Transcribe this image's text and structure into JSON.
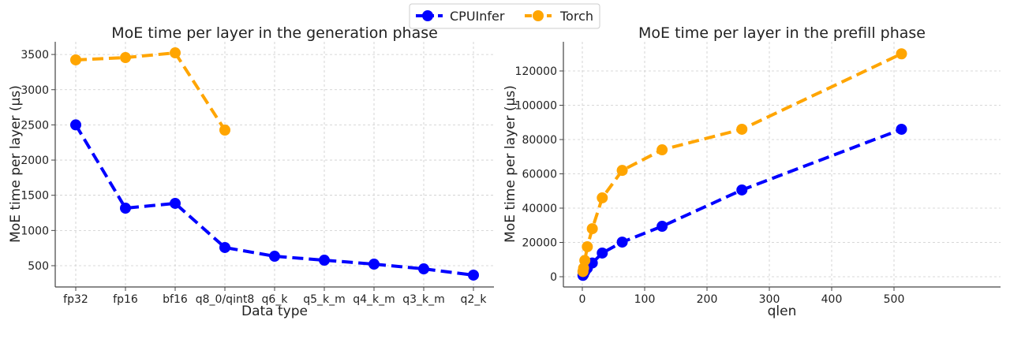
{
  "legend": {
    "placement": "top-center",
    "entries": [
      {
        "name": "CPUInfer",
        "color": "#0000ff"
      },
      {
        "name": "Torch",
        "color": "#ffa500"
      }
    ]
  },
  "chart_data": [
    {
      "type": "line",
      "title": "MoE time per layer in the generation phase",
      "xlabel": "Data type",
      "ylabel": "MoE time per layer (µs)",
      "categories": [
        "fp32",
        "fp16",
        "bf16",
        "q8_0/qint8",
        "q6_k",
        "q5_k_m",
        "q4_k_m",
        "q3_k_m",
        "q2_k"
      ],
      "yticks": [
        500,
        1000,
        1500,
        2000,
        2500,
        3000,
        3500
      ],
      "grid": true,
      "series": [
        {
          "name": "CPUInfer",
          "color": "#0000ff",
          "values": [
            2500,
            1317,
            1385,
            758,
            634,
            578,
            522,
            455,
            366
          ]
        },
        {
          "name": "Torch",
          "color": "#ffa500",
          "values": [
            3423,
            3456,
            3523,
            2426,
            null,
            null,
            null,
            null,
            null
          ]
        }
      ]
    },
    {
      "type": "line",
      "title": "MoE time per layer in the prefill phase",
      "xlabel": "qlen",
      "ylabel": "MoE time per layer (µs)",
      "xticks": [
        0,
        100,
        200,
        300,
        400,
        500
      ],
      "yticks": [
        0,
        20000,
        40000,
        60000,
        80000,
        100000,
        120000
      ],
      "grid": true,
      "x": [
        1,
        2,
        4,
        8,
        16,
        32,
        64,
        128,
        256,
        512
      ],
      "series": [
        {
          "name": "CPUInfer",
          "color": "#0000ff",
          "values": [
            800,
            1500,
            3000,
            5000,
            8000,
            13800,
            20200,
            29400,
            50600,
            86000
          ]
        },
        {
          "name": "Torch",
          "color": "#ffa500",
          "values": [
            3000,
            5000,
            9500,
            17500,
            28000,
            46000,
            62000,
            74000,
            86000,
            130000
          ]
        }
      ]
    }
  ]
}
